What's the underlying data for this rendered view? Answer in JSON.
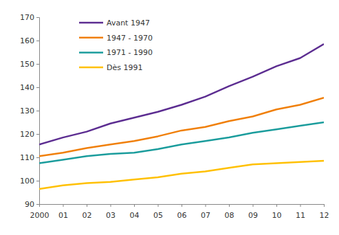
{
  "chart_data": {
    "type": "line",
    "categories": [
      "2000",
      "01",
      "02",
      "03",
      "04",
      "05",
      "06",
      "07",
      "08",
      "09",
      "10",
      "11",
      "12"
    ],
    "series": [
      {
        "name": "Avant 1947",
        "color": "#5c2d91",
        "values": [
          115.5,
          118.5,
          121,
          124.5,
          127,
          129.5,
          132.5,
          136,
          140.5,
          144.5,
          149,
          152.5,
          158.5
        ]
      },
      {
        "name": "1947 - 1970",
        "color": "#f07f09",
        "values": [
          110.5,
          112,
          114,
          115.5,
          117,
          119,
          121.5,
          123,
          125.5,
          127.5,
          130.5,
          132.5,
          135.5
        ]
      },
      {
        "name": "1971 - 1990",
        "color": "#1a9c9c",
        "values": [
          107.5,
          109,
          110.5,
          111.5,
          112,
          113.5,
          115.5,
          117,
          118.5,
          120.5,
          122,
          123.5,
          125
        ]
      },
      {
        "name": "Dès 1991",
        "color": "#ffc000",
        "values": [
          96.5,
          98,
          99,
          99.5,
          100.5,
          101.5,
          103,
          104,
          105.5,
          107,
          107.5,
          108,
          108.5
        ]
      }
    ],
    "ylim": [
      90,
      170
    ],
    "yticks": [
      90,
      100,
      110,
      120,
      130,
      140,
      150,
      160,
      170
    ],
    "grid": false,
    "legend": "upper left"
  }
}
